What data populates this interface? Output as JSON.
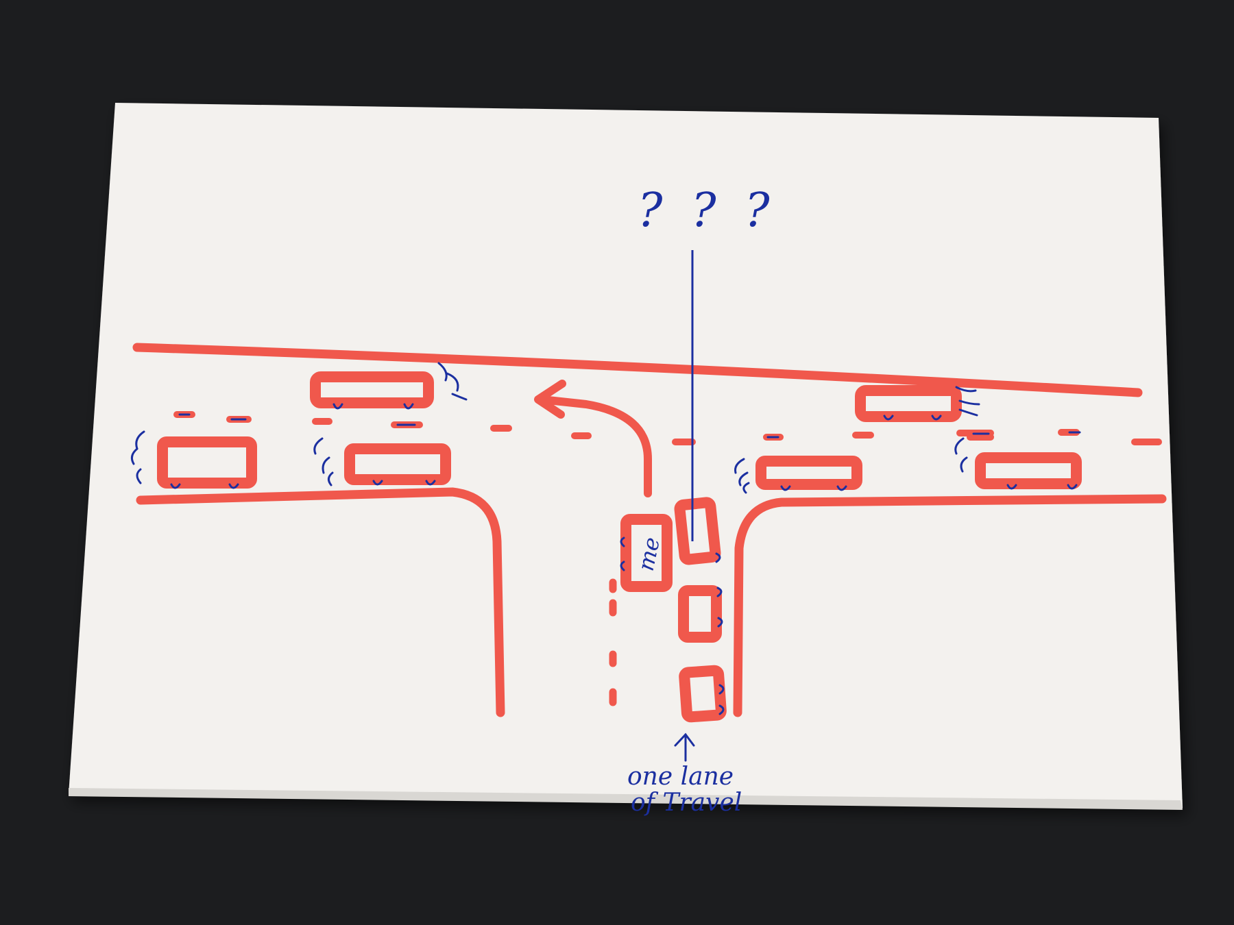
{
  "scene": {
    "description_type": "photo of hand-drawn traffic sketch on paper",
    "colors": {
      "background": "#1c1d1f",
      "paper": "#f3f1ee",
      "marker_red": "#f0584c",
      "pen_blue": "#1b2fa0"
    }
  },
  "annotations": {
    "question_marks": "? ? ?",
    "me_label": "me",
    "lane_note_line1": "one lane",
    "lane_note_line2": "of Travel"
  },
  "icons": {
    "turn_arrow": "left-turn-arrow-icon",
    "up_arrow": "up-arrow-icon"
  }
}
